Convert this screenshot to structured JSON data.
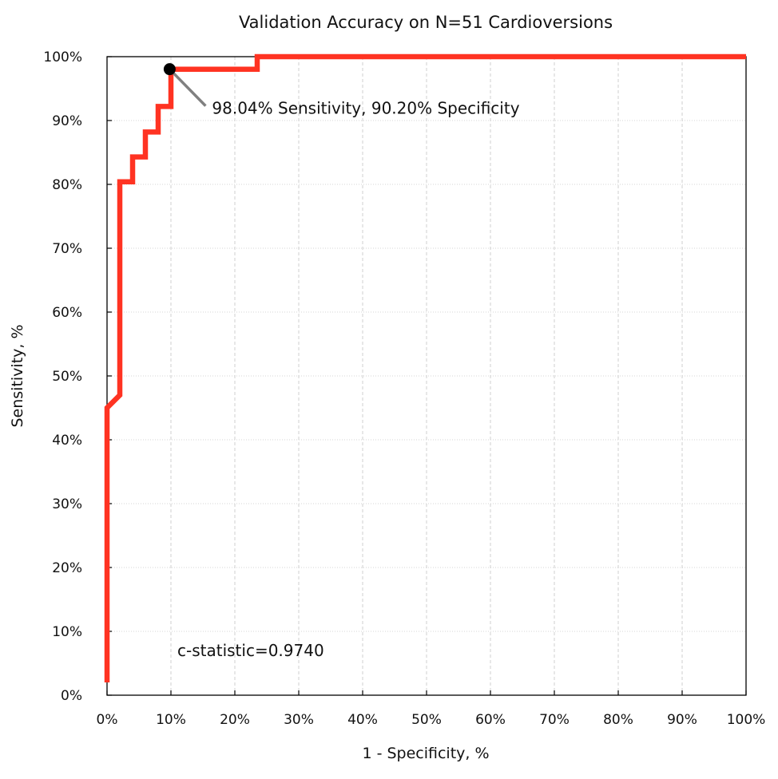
{
  "chart_data": {
    "type": "line",
    "title": "Validation Accuracy on N=51 Cardioversions",
    "xlabel": "1 - Specificity, %",
    "ylabel": "Sensitivity, %",
    "xlim": [
      0,
      100
    ],
    "ylim": [
      0,
      100
    ],
    "x_ticks": [
      "0%",
      "10%",
      "20%",
      "30%",
      "40%",
      "50%",
      "60%",
      "70%",
      "80%",
      "90%",
      "100%"
    ],
    "y_ticks": [
      "0%",
      "10%",
      "20%",
      "30%",
      "40%",
      "50%",
      "60%",
      "70%",
      "80%",
      "90%",
      "100%"
    ],
    "grid": true,
    "series": [
      {
        "color": "#ff3322",
        "x": [
          0,
          0,
          2,
          2,
          4,
          4,
          6,
          6,
          8,
          8,
          10,
          10,
          23.5,
          23.5,
          100
        ],
        "y": [
          2,
          45,
          47,
          80.4,
          80.4,
          84.3,
          84.3,
          88.2,
          88.2,
          92.2,
          92.2,
          98.04,
          98.04,
          100,
          100
        ]
      }
    ],
    "highlight_point": {
      "x": 9.8,
      "y": 98.04,
      "label": "98.04% Sensitivity, 90.20% Specificity",
      "color": "#000000",
      "leader_color": "#808080"
    },
    "annotations": [
      {
        "text": "c-statistic=0.9740",
        "x": 11,
        "y": 7
      }
    ]
  }
}
